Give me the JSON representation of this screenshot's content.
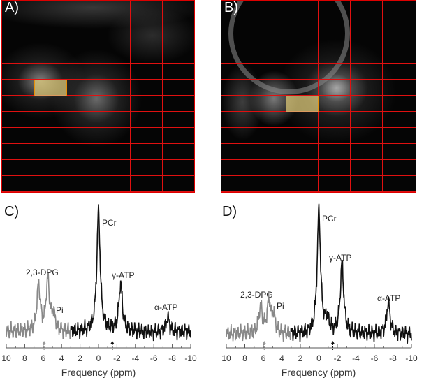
{
  "panels": {
    "a_label": "A)",
    "b_label": "B)",
    "c_label": "C)",
    "d_label": "D)"
  },
  "colors": {
    "grid": "#e01010",
    "roi_fill": "#d8c878",
    "roi_border": "#e8900a",
    "gray_trace": "#888888",
    "black_trace": "#111111"
  },
  "chart_data": [
    {
      "type": "line",
      "panel": "C",
      "xlabel": "Frequency (ppm)",
      "xlim": [
        10,
        -10
      ],
      "xticks": [
        "10",
        "8",
        "6",
        "4",
        "2",
        "0",
        "-2",
        "-4",
        "-6",
        "-8",
        "-10"
      ],
      "gray_region_ppm_above": 3,
      "peaks": [
        {
          "name": "2,3-DPG",
          "ppm": 6.5,
          "amplitude": 0.38
        },
        {
          "name": "2,3-DPG",
          "ppm": 5.5,
          "amplitude": 0.42
        },
        {
          "name": "Pi",
          "ppm": 4.9,
          "amplitude": 0.14
        },
        {
          "name": "PCr",
          "ppm": 0,
          "amplitude": 1.0
        },
        {
          "name": "γ-ATP",
          "ppm": -2.4,
          "amplitude": 0.4
        },
        {
          "name": "α-ATP",
          "ppm": -7.5,
          "amplitude": 0.12
        }
      ],
      "annotations": [
        "PCr",
        "γ-ATP",
        "α-ATP",
        "2,3-DPG",
        "Pi"
      ],
      "arrows_ppm": [
        5.9,
        -1.5
      ]
    },
    {
      "type": "line",
      "panel": "D",
      "xlabel": "Frequency (ppm)",
      "xlim": [
        10,
        -10
      ],
      "xticks": [
        "10",
        "8",
        "6",
        "4",
        "2",
        "0",
        "-2",
        "-4",
        "-6",
        "-8",
        "-10"
      ],
      "gray_region_ppm_above": 3,
      "peaks": [
        {
          "name": "2,3-DPG",
          "ppm": 6.3,
          "amplitude": 0.22
        },
        {
          "name": "2,3-DPG",
          "ppm": 5.4,
          "amplitude": 0.26
        },
        {
          "name": "Pi",
          "ppm": 4.9,
          "amplitude": 0.14
        },
        {
          "name": "PCr",
          "ppm": 0,
          "amplitude": 1.0
        },
        {
          "name": "",
          "ppm": -0.9,
          "amplitude": 0.1
        },
        {
          "name": "γ-ATP",
          "ppm": -2.5,
          "amplitude": 0.57
        },
        {
          "name": "α-ATP",
          "ppm": -7.5,
          "amplitude": 0.26
        }
      ],
      "annotations": [
        "PCr",
        "γ-ATP",
        "α-ATP",
        "2,3-DPG",
        "Pi"
      ],
      "arrows_ppm": [
        5.9,
        -1.5
      ]
    }
  ]
}
